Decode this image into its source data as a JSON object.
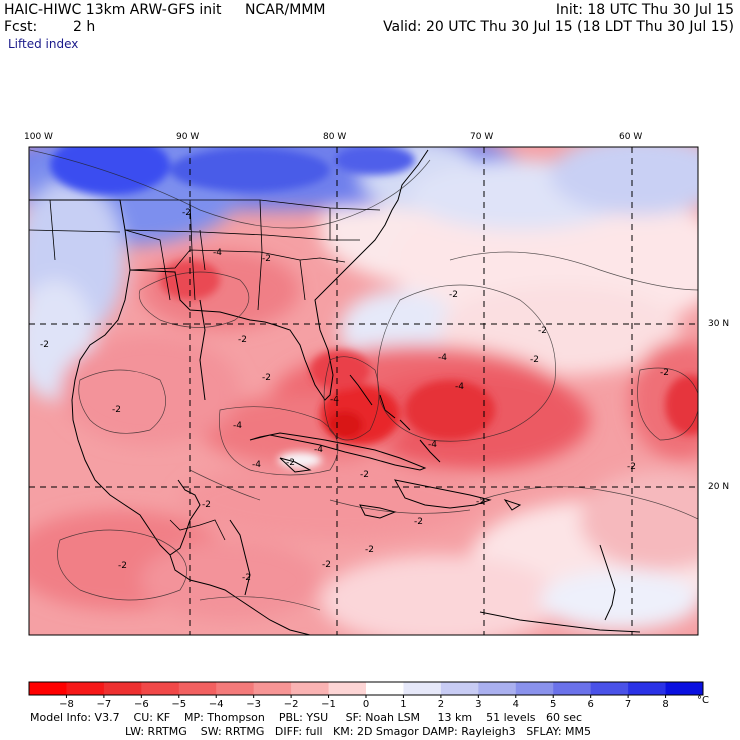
{
  "header": {
    "model_title": "HAIC-HIWC 13km ARW-GFS init",
    "institution": "NCAR/MMM",
    "init": "Init: 18 UTC Thu 30 Jul 15",
    "fcst_label": "Fcst:",
    "fcst_value": "2 h",
    "valid": "Valid: 20 UTC Thu 30 Jul 15 (18 LDT Thu 30 Jul 15)",
    "field": "Lifted index"
  },
  "map": {
    "lon_labels": [
      "100 W",
      "90 W",
      "80 W",
      "70 W",
      "60 W"
    ],
    "lat_labels": [
      "30 N",
      "20 N"
    ],
    "contour_labels": [
      "-2",
      "-2",
      "-2",
      "-2",
      "-2",
      "-2",
      "-2",
      "-2",
      "-2",
      "-2",
      "-2",
      "-2",
      "-2",
      "-2",
      "-2",
      "-2",
      "-2",
      "-2",
      "-2",
      "-2",
      "-4",
      "-4",
      "-4",
      "-4",
      "-4",
      "-4",
      "-4",
      "-4"
    ],
    "colors": {
      "strong_negative": "#e8262c",
      "moderate_negative": "#f0757d",
      "weak_negative": "#f9c3c6",
      "near_zero": "#fdf4f4",
      "weak_positive": "#d6def6",
      "moderate_positive": "#8c9eee",
      "strong_positive": "#3b4ef0",
      "coastline": "#000000"
    }
  },
  "colorbar": {
    "unit": "°C",
    "ticks": [
      "−8",
      "−7",
      "−6",
      "−5",
      "−4",
      "−3",
      "−2",
      "−1",
      "0",
      "1",
      "2",
      "3",
      "4",
      "5",
      "6",
      "7",
      "8"
    ],
    "colors": [
      "#ff0000",
      "#f61818",
      "#ee3030",
      "#f14848",
      "#f26060",
      "#f47a7a",
      "#f79595",
      "#fab3b3",
      "#fdd5d5",
      "#ffffff",
      "#e6e8f9",
      "#c8ccf4",
      "#aab0ef",
      "#8a92ec",
      "#6b72ea",
      "#4a52e8",
      "#2a32e6",
      "#0a10e0"
    ]
  },
  "model_info": {
    "line1": "Model Info: V3.7    CU: KF    MP: Thompson    PBL: YSU     SF: Noah LSM     13 km    51 levels   60 sec",
    "line2": "LW: RRTMG    SW: RRTMG   DIFF: full   KM: 2D Smagor DAMP: Rayleigh3   SFLAY: MM5"
  }
}
